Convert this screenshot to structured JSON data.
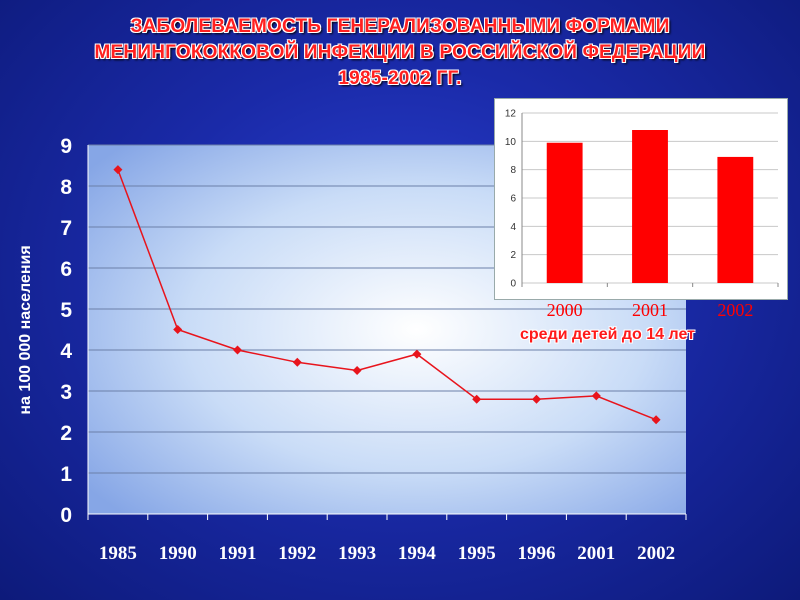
{
  "title_lines": [
    "ЗАБОЛЕВАЕМОСТЬ ГЕНЕРАЛИЗОВАННЫМИ ФОРМАМИ",
    "МЕНИНГОКОККОВОЙ ИНФЕКЦИИ В РОССИЙСКОЙ ФЕДЕРАЦИИ",
    "1985-2002 ГГ."
  ],
  "inset_caption": "среди детей до 14 лет",
  "colors": {
    "series": "#e8141c",
    "bar": "#ff0000",
    "axis_text": "#ffffff",
    "category_text": "#ffffff"
  },
  "chart_data": [
    {
      "type": "line",
      "ylabel": "на 100 000 населения",
      "categories": [
        "1985",
        "1990",
        "1991",
        "1992",
        "1993",
        "1994",
        "1995",
        "1996",
        "2001",
        "2002"
      ],
      "values": [
        8.4,
        4.5,
        4.0,
        3.7,
        3.5,
        3.9,
        2.8,
        2.8,
        2.88,
        2.3
      ],
      "ylim": [
        0,
        9
      ],
      "yticks": [
        0,
        1,
        2,
        3,
        4,
        5,
        6,
        7,
        8,
        9
      ],
      "grid": true
    },
    {
      "type": "bar",
      "categories": [
        "2000",
        "2001",
        "2002"
      ],
      "values": [
        9.9,
        10.8,
        8.9
      ],
      "ylim": [
        0,
        12
      ],
      "yticks": [
        0,
        2,
        4,
        6,
        8,
        10,
        12
      ],
      "grid": true
    }
  ]
}
